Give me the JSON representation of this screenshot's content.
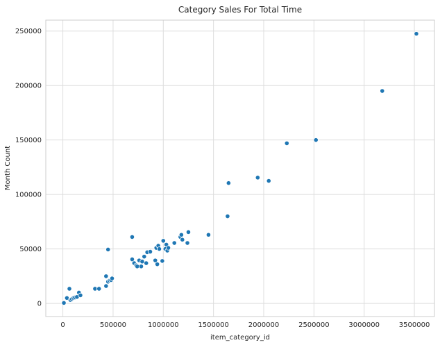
{
  "chart_data": {
    "type": "scatter",
    "title": "Category Sales For Total Time",
    "xlabel": "item_category_id",
    "ylabel": "Month Count",
    "xlim": [
      -170000,
      3700000
    ],
    "ylim": [
      -12000,
      260000
    ],
    "xticks": [
      0,
      500000,
      1000000,
      1500000,
      2000000,
      2500000,
      3000000,
      3500000
    ],
    "xtick_labels": [
      "0",
      "500000",
      "1000000",
      "1500000",
      "2000000",
      "2500000",
      "3000000",
      "3500000"
    ],
    "yticks": [
      0,
      50000,
      100000,
      150000,
      200000,
      250000
    ],
    "ytick_labels": [
      "0",
      "50000",
      "100000",
      "150000",
      "200000",
      "250000"
    ],
    "grid": true,
    "point_color": "#1f77b4",
    "series": [
      {
        "points": [
          [
            10000,
            500
          ],
          [
            40000,
            5000
          ],
          [
            65000,
            13500
          ],
          [
            75000,
            3200
          ],
          [
            90000,
            4000
          ],
          [
            105000,
            5000
          ],
          [
            120000,
            5500
          ],
          [
            140000,
            6000
          ],
          [
            160000,
            10000
          ],
          [
            175000,
            7500
          ],
          [
            320000,
            13500
          ],
          [
            360000,
            13500
          ],
          [
            430000,
            16000
          ],
          [
            430000,
            25000
          ],
          [
            450000,
            20000
          ],
          [
            450000,
            49500
          ],
          [
            465000,
            21000
          ],
          [
            480000,
            21500
          ],
          [
            490000,
            23000
          ],
          [
            690000,
            61000
          ],
          [
            690000,
            40500
          ],
          [
            710000,
            37000
          ],
          [
            730000,
            35000
          ],
          [
            740000,
            34000
          ],
          [
            760000,
            39500
          ],
          [
            780000,
            34000
          ],
          [
            790000,
            38500
          ],
          [
            810000,
            43000
          ],
          [
            830000,
            37000
          ],
          [
            840000,
            47000
          ],
          [
            870000,
            47500
          ],
          [
            920000,
            39500
          ],
          [
            930000,
            51000
          ],
          [
            940000,
            36000
          ],
          [
            950000,
            53000
          ],
          [
            960000,
            50000
          ],
          [
            990000,
            39000
          ],
          [
            1000000,
            57500
          ],
          [
            1020000,
            50000
          ],
          [
            1030000,
            54000
          ],
          [
            1040000,
            48500
          ],
          [
            1050000,
            51000
          ],
          [
            1110000,
            55500
          ],
          [
            1170000,
            61000
          ],
          [
            1180000,
            63000
          ],
          [
            1190000,
            58500
          ],
          [
            1240000,
            55500
          ],
          [
            1250000,
            65500
          ],
          [
            1450000,
            63000
          ],
          [
            1640000,
            80000
          ],
          [
            1650000,
            110500
          ],
          [
            1940000,
            115500
          ],
          [
            2050000,
            112500
          ],
          [
            2230000,
            147000
          ],
          [
            2520000,
            150000
          ],
          [
            3180000,
            195000
          ],
          [
            3520000,
            247500
          ]
        ]
      }
    ]
  }
}
